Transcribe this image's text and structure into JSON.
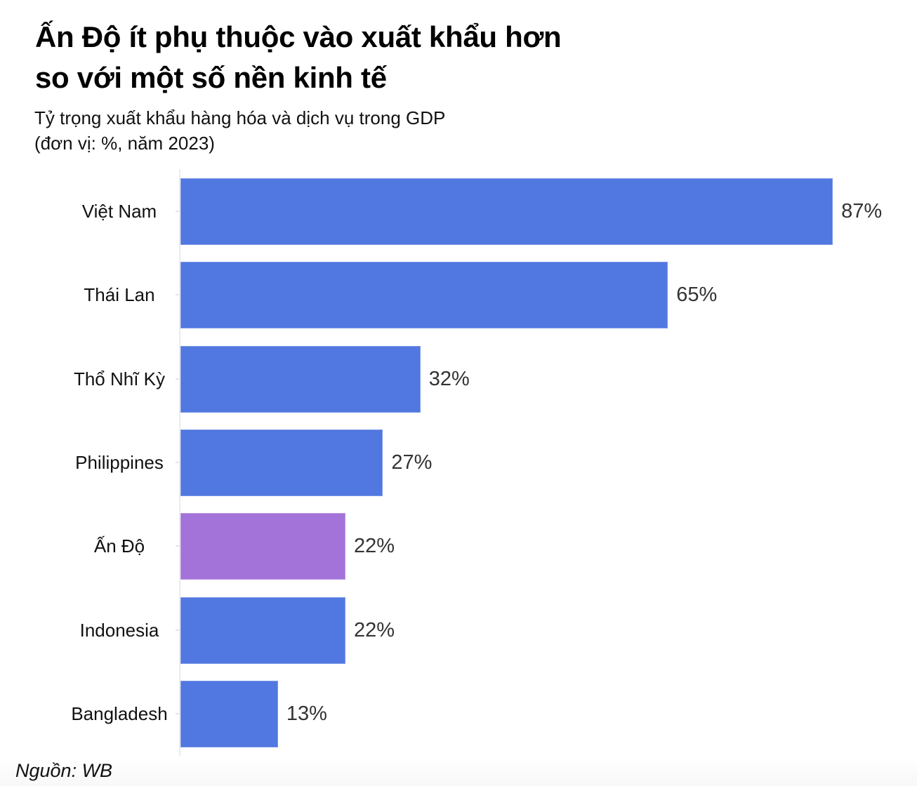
{
  "header": {
    "title_line1": "Ấn Độ ít phụ thuộc vào xuất khẩu hơn",
    "title_line2": "so với một số nền kinh tế",
    "subtitle_line1": "Tỷ trọng xuất khẩu hàng hóa và dịch vụ trong GDP",
    "subtitle_line2": "(đơn vị: %, năm 2023)"
  },
  "footer": {
    "source": "Nguồn: WB"
  },
  "colors": {
    "default_bar": "#5177E0",
    "highlight_bar": "#A373D9",
    "value_label": "#333333"
  },
  "chart_data": {
    "type": "bar",
    "orientation": "horizontal",
    "title": "Ấn Độ ít phụ thuộc vào xuất khẩu hơn so với một số nền kinh tế",
    "subtitle": "Tỷ trọng xuất khẩu hàng hóa và dịch vụ trong GDP (đơn vị: %, năm 2023)",
    "xlabel": "",
    "ylabel": "",
    "categories": [
      "Việt Nam",
      "Thái Lan",
      "Thổ Nhĩ Kỳ",
      "Philippines",
      "Ấn Độ",
      "Indonesia",
      "Bangladesh"
    ],
    "values": [
      87,
      65,
      32,
      27,
      22,
      22,
      13
    ],
    "value_labels": [
      "87%",
      "65%",
      "32%",
      "27%",
      "22%",
      "22%",
      "13%"
    ],
    "highlight": [
      "Ấn Độ"
    ],
    "unit": "%",
    "grid": false,
    "legend": "none",
    "source": "Nguồn: WB"
  }
}
